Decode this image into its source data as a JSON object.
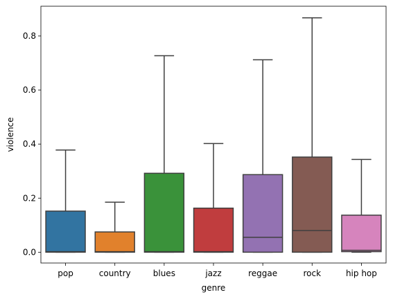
{
  "chart_data": {
    "type": "box",
    "title": "",
    "xlabel": "genre",
    "ylabel": "violence",
    "ylim": [
      -0.04,
      0.91
    ],
    "yticks": [
      0.0,
      0.2,
      0.4,
      0.6,
      0.8
    ],
    "ytick_labels": [
      "0.0",
      "0.2",
      "0.4",
      "0.6",
      "0.8"
    ],
    "grid": false,
    "legend": "none",
    "categories": [
      "pop",
      "country",
      "blues",
      "jazz",
      "reggae",
      "rock",
      "hip hop"
    ],
    "series": [
      {
        "category": "pop",
        "color": "#3274a1",
        "whisker_low": 0.0,
        "q1": 0.0,
        "median": 0.002,
        "q3": 0.152,
        "whisker_high": 0.378
      },
      {
        "category": "country",
        "color": "#e1812c",
        "whisker_low": 0.0,
        "q1": 0.0,
        "median": 0.002,
        "q3": 0.075,
        "whisker_high": 0.185
      },
      {
        "category": "blues",
        "color": "#3a923a",
        "whisker_low": 0.0,
        "q1": 0.0,
        "median": 0.002,
        "q3": 0.292,
        "whisker_high": 0.727
      },
      {
        "category": "jazz",
        "color": "#c03d3e",
        "whisker_low": 0.0,
        "q1": 0.0,
        "median": 0.002,
        "q3": 0.163,
        "whisker_high": 0.402
      },
      {
        "category": "reggae",
        "color": "#9372b2",
        "whisker_low": 0.0,
        "q1": 0.0,
        "median": 0.055,
        "q3": 0.287,
        "whisker_high": 0.712
      },
      {
        "category": "rock",
        "color": "#845b53",
        "whisker_low": 0.0,
        "q1": 0.0,
        "median": 0.08,
        "q3": 0.352,
        "whisker_high": 0.867
      },
      {
        "category": "hip hop",
        "color": "#d684bd",
        "whisker_low": 0.0,
        "q1": 0.002,
        "median": 0.007,
        "q3": 0.137,
        "whisker_high": 0.343
      }
    ]
  }
}
